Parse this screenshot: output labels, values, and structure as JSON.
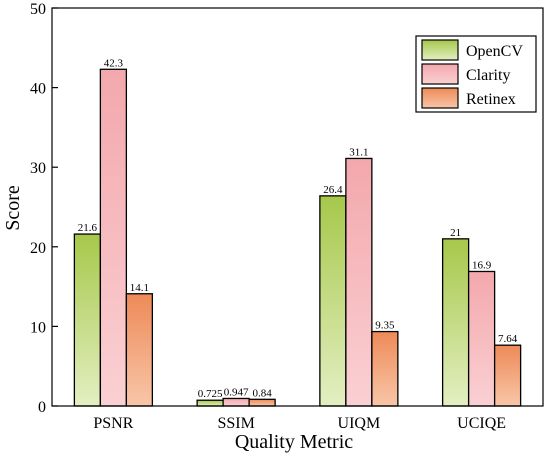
{
  "chart_data": {
    "type": "bar",
    "title": "",
    "xlabel": "Quality Metric",
    "ylabel": "Score",
    "ylim": [
      0,
      50
    ],
    "yticks": [
      0,
      10,
      20,
      30,
      40,
      50
    ],
    "grid": false,
    "legend_position": "top-right",
    "categories": [
      "PSNR",
      "SSIM",
      "UIQM",
      "UCIQE"
    ],
    "series": [
      {
        "name": "OpenCV",
        "values": [
          21.6,
          0.725,
          26.4,
          21
        ],
        "labels": [
          "21.6",
          "0.725",
          "26.4",
          "21"
        ],
        "color_top": "#a6c84a",
        "color_bottom": "#e3efc2"
      },
      {
        "name": "Clarity",
        "values": [
          42.3,
          0.947,
          31.1,
          16.9
        ],
        "labels": [
          "42.3",
          "0.947",
          "31.1",
          "16.9"
        ],
        "color_top": "#f3a8ad",
        "color_bottom": "#fad0d3"
      },
      {
        "name": "Retinex",
        "values": [
          14.1,
          0.84,
          9.35,
          7.64
        ],
        "labels": [
          "14.1",
          "0.84",
          "9.35",
          "7.64"
        ],
        "color_top": "#ee8a58",
        "color_bottom": "#f8c6a8"
      }
    ]
  }
}
